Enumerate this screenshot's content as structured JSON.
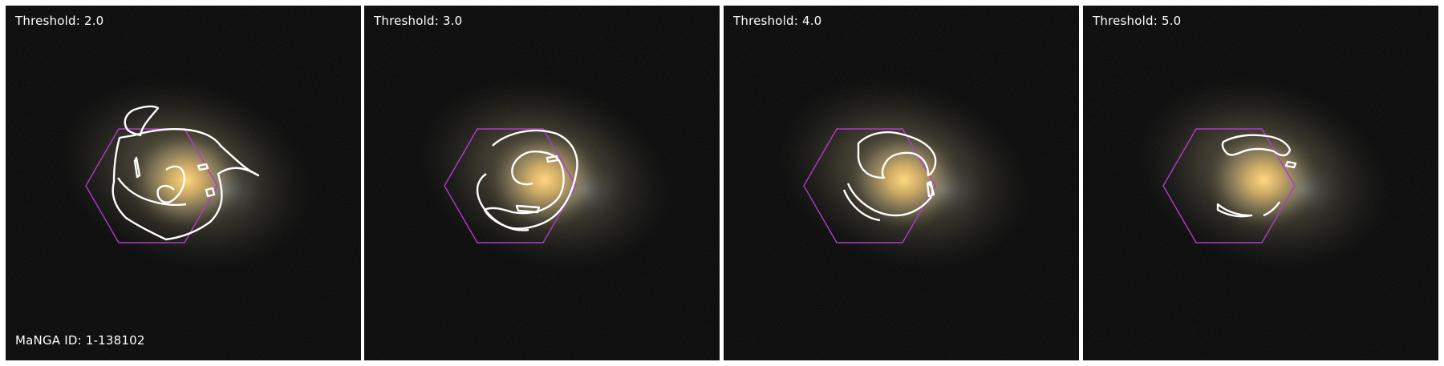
{
  "panels": [
    {
      "label": "Threshold: 2.0"
    },
    {
      "label": "Threshold: 3.0"
    },
    {
      "label": "Threshold: 4.0"
    },
    {
      "label": "Threshold: 5.0"
    }
  ],
  "manga_id_label": "MaNGA ID: 1-138102",
  "colors": {
    "hexagon": "#b03cc8",
    "contour": "#ffffff",
    "background": "#000000",
    "galaxy_core": "#f2c070"
  }
}
